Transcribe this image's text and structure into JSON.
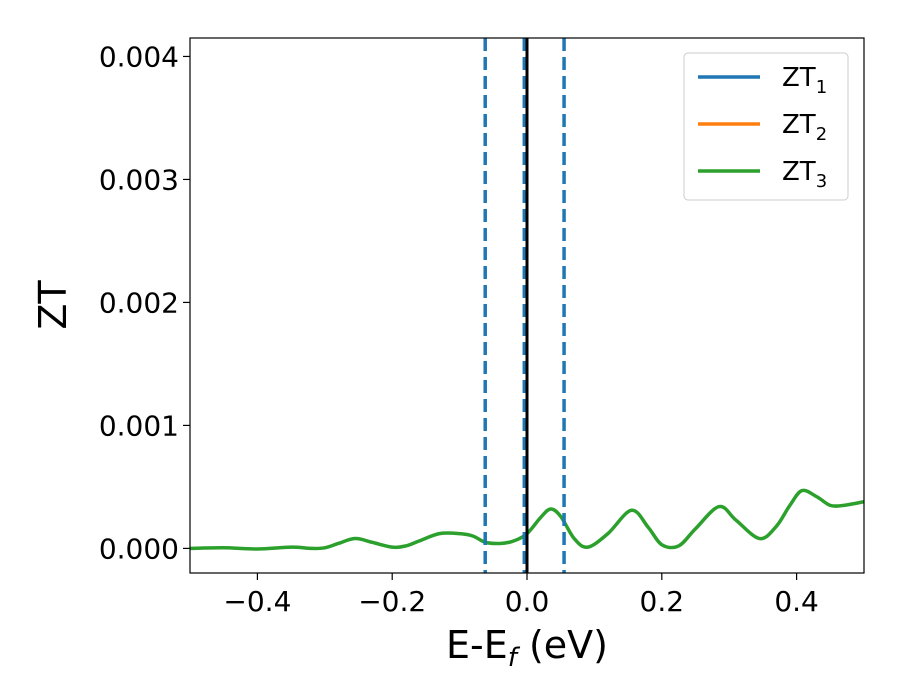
{
  "chart_data": {
    "type": "line",
    "xlabel": "E-E",
    "xlabel_sub": "f",
    "xlabel_unit": " (eV)",
    "ylabel": "ZT",
    "xlim": [
      -0.5,
      0.5
    ],
    "ylim": [
      -0.0002,
      0.00415
    ],
    "xticks": [
      -0.4,
      -0.2,
      0.0,
      0.2,
      0.4
    ],
    "xtick_labels": [
      "−0.4",
      "−0.2",
      "0.0",
      "0.2",
      "0.4"
    ],
    "yticks": [
      0.0,
      0.001,
      0.002,
      0.003,
      0.004
    ],
    "ytick_labels": [
      "0.000",
      "0.001",
      "0.002",
      "0.003",
      "0.004"
    ],
    "grid": false,
    "legend_position": "top-right",
    "vlines": [
      {
        "x": -0.062,
        "style": "dashed",
        "color": "#1f77b4"
      },
      {
        "x": -0.004,
        "style": "dashed",
        "color": "#1f77b4"
      },
      {
        "x": 0.055,
        "style": "dashed",
        "color": "#1f77b4"
      },
      {
        "x": 0.0,
        "style": "solid",
        "color": "#000000"
      }
    ],
    "series": [
      {
        "name": "ZT",
        "subscript": "1",
        "color": "#1f77b4",
        "x": [],
        "y": []
      },
      {
        "name": "ZT",
        "subscript": "2",
        "color": "#ff7f0e",
        "x": [],
        "y": []
      },
      {
        "name": "ZT",
        "subscript": "3",
        "color": "#2ca02c",
        "x": [
          -0.5,
          -0.45,
          -0.4,
          -0.35,
          -0.32,
          -0.3,
          -0.28,
          -0.255,
          -0.23,
          -0.2,
          -0.18,
          -0.16,
          -0.13,
          -0.1,
          -0.08,
          -0.062,
          -0.04,
          -0.02,
          0.0,
          0.02,
          0.035,
          0.05,
          0.07,
          0.09,
          0.12,
          0.155,
          0.18,
          0.2,
          0.225,
          0.25,
          0.285,
          0.31,
          0.345,
          0.37,
          0.39,
          0.408,
          0.43,
          0.45,
          0.47,
          0.5
        ],
        "y": [
          0.0,
          5e-06,
          -5e-06,
          1e-05,
          0.0,
          5e-06,
          4e-05,
          8e-05,
          5e-05,
          1e-05,
          2e-05,
          6e-05,
          0.00012,
          0.00012,
          0.0001,
          5e-05,
          4e-05,
          6e-05,
          0.00012,
          0.00025,
          0.00032,
          0.00026,
          8e-05,
          1e-05,
          0.00012,
          0.00031,
          0.00017,
          3e-05,
          2e-05,
          0.00016,
          0.00034,
          0.00023,
          8e-05,
          0.00018,
          0.00035,
          0.00047,
          0.00042,
          0.00035,
          0.00035,
          0.00038
        ]
      }
    ]
  }
}
